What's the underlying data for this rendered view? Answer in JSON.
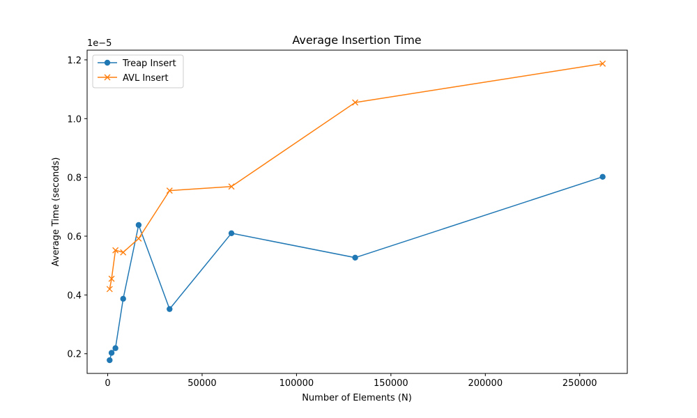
{
  "chart_data": {
    "type": "line",
    "title": "Average Insertion Time",
    "xlabel": "Number of Elements (N)",
    "ylabel": "Average Time (seconds)",
    "y_offset_label": "1e−5",
    "y_scale_factor": 1e-05,
    "xlim": [
      -10900,
      275200
    ],
    "ylim": [
      0.133,
      1.233
    ],
    "x_ticks": [
      0,
      50000,
      100000,
      150000,
      200000,
      250000
    ],
    "x_tick_labels": [
      "0",
      "50000",
      "100000",
      "150000",
      "200000",
      "250000"
    ],
    "y_ticks": [
      0.2,
      0.4,
      0.6,
      0.8,
      1.0,
      1.2
    ],
    "y_tick_labels": [
      "0.2",
      "0.4",
      "0.6",
      "0.8",
      "1.0",
      "1.2"
    ],
    "grid": false,
    "legend_position": "top-left",
    "x": [
      1024,
      2048,
      4096,
      8192,
      16384,
      32768,
      65536,
      131072,
      262144
    ],
    "series": [
      {
        "name": "Treap Insert",
        "color": "#1f77b4",
        "marker": "circle",
        "values": [
          0.178,
          0.203,
          0.219,
          0.387,
          0.638,
          0.352,
          0.61,
          0.527,
          0.802
        ]
      },
      {
        "name": "AVL Insert",
        "color": "#ff7f0e",
        "marker": "x",
        "values": [
          0.42,
          0.455,
          0.552,
          0.545,
          0.592,
          0.755,
          0.769,
          1.055,
          1.187
        ]
      }
    ]
  }
}
